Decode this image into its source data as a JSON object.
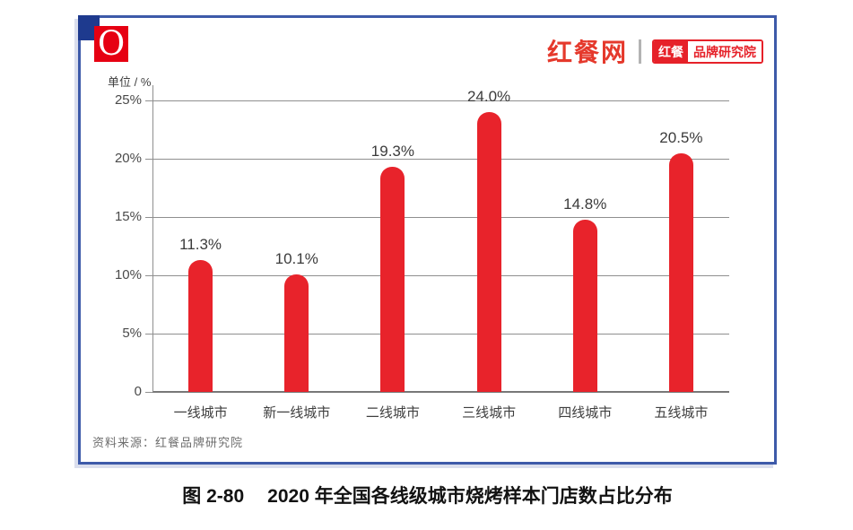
{
  "header": {
    "brand_logo_letter": "O",
    "site_logo": "红餐网",
    "badge_left": "红餐",
    "badge_right": "品牌研究院"
  },
  "chart": {
    "unit_label": "单位 / %",
    "source": "资料来源：红餐品牌研究院"
  },
  "caption": {
    "label": "图 2-80",
    "title": "2020 年全国各线级城市烧烤样本门店数占比分布"
  },
  "colors": {
    "bar_red": "#e8232b",
    "logo_red": "#e60012",
    "site_logo_red": "#e5392c",
    "badge_red": "#e62129",
    "frame_blue": "#3d5aa9",
    "corner_navy": "#1e3a8e",
    "grid_gray": "#8f8f8f",
    "value_label_dark": "#3b3b3b"
  },
  "chart_data": {
    "type": "bar",
    "title": "2020 年全国各线级城市烧烤样本门店数占比分布",
    "categories": [
      "一线城市",
      "新一线城市",
      "二线城市",
      "三线城市",
      "四线城市",
      "五线城市"
    ],
    "values": [
      11.3,
      10.1,
      19.3,
      24.0,
      14.8,
      20.5
    ],
    "value_labels": [
      "11.3%",
      "10.1%",
      "19.3%",
      "24.0%",
      "14.8%",
      "20.5%"
    ],
    "xlabel": "",
    "ylabel": "单位 / %",
    "ylim": [
      0,
      25
    ],
    "yticks": [
      0,
      5,
      10,
      15,
      20,
      25
    ],
    "ytick_labels": [
      "0",
      "5%",
      "10%",
      "15%",
      "20%",
      "25%"
    ],
    "grid": true,
    "legend": false,
    "bar_color": "#e8232b"
  }
}
